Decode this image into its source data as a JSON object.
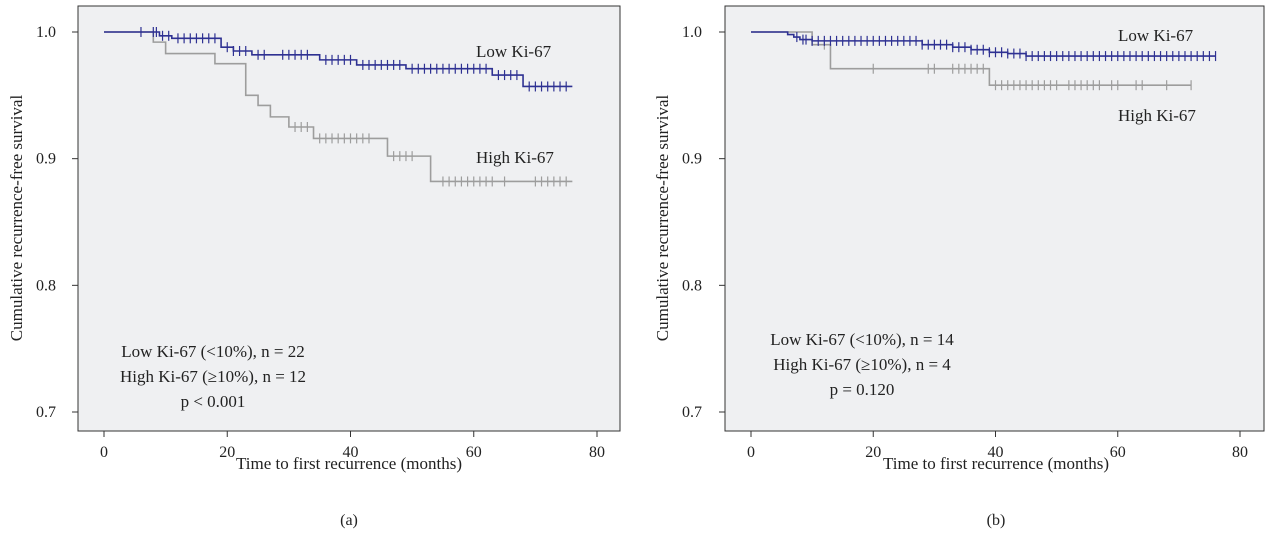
{
  "chart_data": [
    {
      "type": "line",
      "panel_label": "(a)",
      "xlabel": "Time to first recurrence (months)",
      "ylabel": "Cumulative recurrence-free survival",
      "xlim": [
        0,
        80
      ],
      "ylim": [
        0.7,
        1.0
      ],
      "xticks": [
        "0",
        "20",
        "40",
        "60",
        "80"
      ],
      "yticks": [
        "0.7",
        "0.8",
        "0.9",
        "1.0"
      ],
      "annotations": [
        "Low Ki-67 (<10%), n = 22",
        "High Ki-67 (≥10%), n = 12",
        "p < 0.001"
      ],
      "series": [
        {
          "name": "Low Ki-67",
          "color": "#2e3192",
          "steps": [
            [
              0,
              1.0
            ],
            [
              9,
              0.997
            ],
            [
              11,
              0.995
            ],
            [
              19,
              0.988
            ],
            [
              21,
              0.985
            ],
            [
              24,
              0.982
            ],
            [
              35,
              0.978
            ],
            [
              41,
              0.974
            ],
            [
              49,
              0.971
            ],
            [
              63,
              0.966
            ],
            [
              68,
              0.957
            ],
            [
              76,
              0.957
            ]
          ],
          "censored": [
            6,
            8,
            8.5,
            9.5,
            10.5,
            12,
            13,
            14,
            15,
            16,
            17,
            18,
            20,
            21,
            22,
            23,
            25,
            26,
            29,
            30,
            31,
            32,
            33,
            36,
            37,
            38,
            39,
            40,
            42,
            43,
            44,
            45,
            46,
            47,
            48,
            50,
            51,
            52,
            53,
            54,
            55,
            56,
            57,
            58,
            59,
            60,
            61,
            62,
            64,
            65,
            66,
            67,
            69,
            70,
            71,
            72,
            73,
            74,
            75
          ]
        },
        {
          "name": "High Ki-67",
          "color": "#9d9d9d",
          "steps": [
            [
              0,
              1.0
            ],
            [
              8,
              0.992
            ],
            [
              10,
              0.983
            ],
            [
              18,
              0.975
            ],
            [
              23,
              0.95
            ],
            [
              25,
              0.942
            ],
            [
              27,
              0.933
            ],
            [
              30,
              0.925
            ],
            [
              34,
              0.916
            ],
            [
              46,
              0.902
            ],
            [
              53,
              0.882
            ],
            [
              76,
              0.882
            ]
          ],
          "censored": [
            31,
            32,
            33,
            35,
            36,
            37,
            38,
            39,
            40,
            41,
            42,
            43,
            47,
            48,
            49,
            50,
            55,
            56,
            57,
            58,
            59,
            60,
            61,
            62,
            63,
            65,
            70,
            71,
            72,
            73,
            74,
            75
          ]
        }
      ]
    },
    {
      "type": "line",
      "panel_label": "(b)",
      "xlabel": "Time to first recurrence (months)",
      "ylabel": "Cumulative recurrence-free survival",
      "xlim": [
        0,
        80
      ],
      "ylim": [
        0.7,
        1.0
      ],
      "xticks": [
        "0",
        "20",
        "40",
        "60",
        "80"
      ],
      "yticks": [
        "0.7",
        "0.8",
        "0.9",
        "1.0"
      ],
      "annotations": [
        "Low Ki-67 (<10%), n = 14",
        "High Ki-67 (≥10%), n = 4",
        "p = 0.120"
      ],
      "series": [
        {
          "name": "Low Ki-67",
          "color": "#2e3192",
          "steps": [
            [
              0,
              1.0
            ],
            [
              6,
              0.998
            ],
            [
              7,
              0.996
            ],
            [
              8,
              0.994
            ],
            [
              10,
              0.993
            ],
            [
              28,
              0.99
            ],
            [
              33,
              0.988
            ],
            [
              36,
              0.986
            ],
            [
              39,
              0.984
            ],
            [
              42,
              0.983
            ],
            [
              45,
              0.981
            ],
            [
              76,
              0.981
            ]
          ],
          "censored": [
            7.5,
            8.5,
            9,
            10,
            11,
            12,
            13,
            14,
            15,
            16,
            17,
            18,
            19,
            20,
            21,
            22,
            23,
            24,
            25,
            26,
            27,
            28,
            29,
            30,
            31,
            32,
            33,
            34,
            35,
            36,
            37,
            38,
            39,
            40,
            41,
            42,
            43,
            44,
            45,
            46,
            47,
            48,
            49,
            50,
            51,
            52,
            53,
            54,
            55,
            56,
            57,
            58,
            59,
            60,
            61,
            62,
            63,
            64,
            65,
            66,
            67,
            68,
            69,
            70,
            71,
            72,
            73,
            74,
            75,
            76
          ]
        },
        {
          "name": "High Ki-67",
          "color": "#9d9d9d",
          "steps": [
            [
              0,
              1.0
            ],
            [
              10,
              0.99
            ],
            [
              13,
              0.971
            ],
            [
              39,
              0.958
            ],
            [
              72,
              0.958
            ]
          ],
          "censored": [
            12,
            20,
            29,
            30,
            33,
            34,
            35,
            36,
            37,
            38,
            40,
            41,
            42,
            43,
            44,
            45,
            46,
            47,
            48,
            49,
            50,
            52,
            53,
            54,
            55,
            56,
            57,
            59,
            60,
            63,
            64,
            68,
            72
          ]
        }
      ]
    }
  ]
}
